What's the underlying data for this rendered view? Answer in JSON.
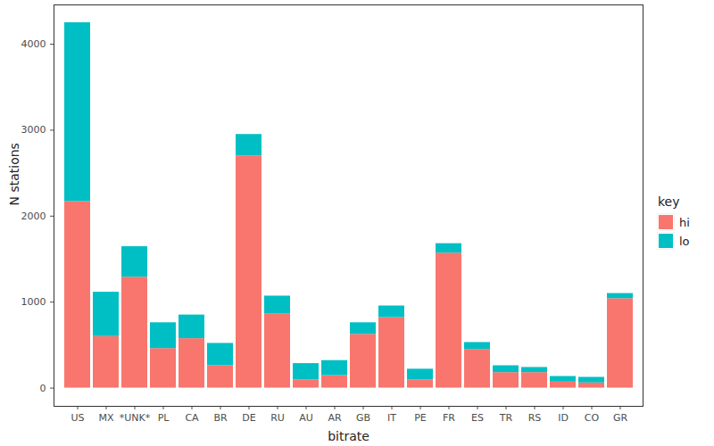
{
  "chart_data": {
    "type": "bar",
    "stacked": true,
    "x_label": "bitrate",
    "y_label": "N stations",
    "categories": [
      "US",
      "MX",
      "*UNK*",
      "PL",
      "CA",
      "BR",
      "DE",
      "RU",
      "AU",
      "AR",
      "GB",
      "IT",
      "PE",
      "FR",
      "ES",
      "TR",
      "RS",
      "ID",
      "CO",
      "GR"
    ],
    "series": [
      {
        "name": "hi",
        "color": "#F8766D",
        "values": [
          2170,
          600,
          1290,
          460,
          575,
          260,
          2700,
          865,
          95,
          145,
          625,
          820,
          95,
          1570,
          450,
          180,
          180,
          70,
          60,
          1040
        ]
      },
      {
        "name": "lo",
        "color": "#00BFC4",
        "values": [
          2080,
          515,
          355,
          300,
          275,
          260,
          250,
          205,
          190,
          175,
          135,
          135,
          125,
          110,
          80,
          80,
          60,
          65,
          65,
          60
        ]
      }
    ],
    "ylim": [
      -212,
      4457
    ],
    "yticks": [
      0,
      1000,
      2000,
      3000,
      4000
    ],
    "grid": true,
    "legend": "right",
    "legend_title": "key"
  }
}
